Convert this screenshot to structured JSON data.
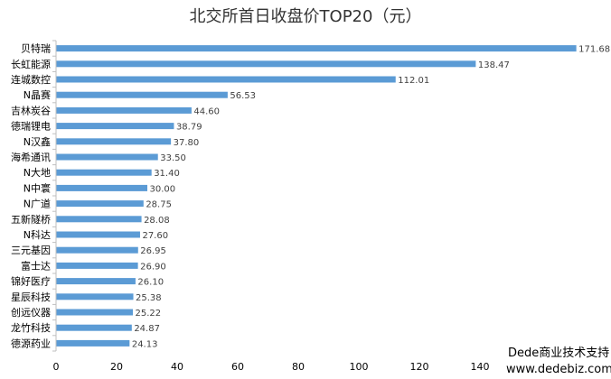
{
  "chart_data": {
    "type": "bar",
    "orientation": "horizontal",
    "title": "北交所首日收盘价TOP20（元）",
    "categories": [
      "贝特瑞",
      "长虹能源",
      "连城数控",
      "N晶赛",
      "吉林炭谷",
      "德瑞锂电",
      "N汉鑫",
      "海希通讯",
      "N大地",
      "N中寰",
      "N广道",
      "五新隧桥",
      "N科达",
      "三元基因",
      "富士达",
      "锦好医疗",
      "星辰科技",
      "创远仪器",
      "龙竹科技",
      "德源药业"
    ],
    "values": [
      171.68,
      138.47,
      112.01,
      56.53,
      44.6,
      38.79,
      37.8,
      33.5,
      31.4,
      30.0,
      28.75,
      28.08,
      27.6,
      26.95,
      26.9,
      26.1,
      25.38,
      25.22,
      24.87,
      24.13
    ],
    "value_labels": [
      "171.68",
      "138.47",
      "112.01",
      "56.53",
      "44.60",
      "38.79",
      "37.80",
      "33.50",
      "31.40",
      "30.00",
      "28.75",
      "28.08",
      "27.60",
      "26.95",
      "26.90",
      "26.10",
      "25.38",
      "25.22",
      "24.87",
      "24.13"
    ],
    "x_ticks": [
      "0",
      "20",
      "40",
      "60",
      "80",
      "100",
      "120",
      "140"
    ],
    "xlim": [
      0,
      170
    ],
    "bar_color": "#5B9BD5",
    "xlabel": "",
    "ylabel": "",
    "grid": false,
    "legend": "none"
  },
  "watermark": {
    "line1": "Dede商业技术支持",
    "line2": "www.dedebiz.com"
  }
}
